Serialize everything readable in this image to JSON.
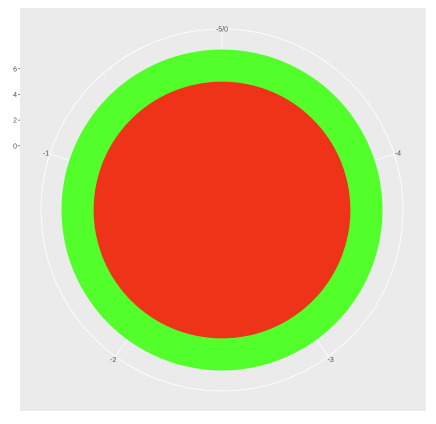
{
  "chart_data": {
    "type": "pie",
    "coord": "polar",
    "title": "",
    "xlabel": "",
    "ylabel": "",
    "background_color": "#ebebeb",
    "grid_color": "#ffffff",
    "grid": true,
    "legend": "none",
    "theta_ticks": [
      "-5/0",
      "-4",
      "-3",
      "-2",
      "-1"
    ],
    "r_ticks": [
      "0",
      "2",
      "4",
      "6"
    ],
    "r_tick_values": [
      0,
      2,
      4,
      6
    ],
    "r_range": [
      -5,
      7.5
    ],
    "series": [
      {
        "r_inner": -5,
        "r_outer": 5,
        "color": "#ee3319"
      },
      {
        "r_inner": 5,
        "r_outer": 7.5,
        "color": "#53ff2a"
      }
    ]
  }
}
